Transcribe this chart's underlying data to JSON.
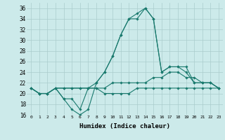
{
  "xlabel": "Humidex (Indice chaleur)",
  "bg_color": "#cceaea",
  "grid_color": "#aacccc",
  "line_color": "#1a7a6e",
  "xlim": [
    -0.5,
    23.5
  ],
  "ylim": [
    16,
    37
  ],
  "xticks": [
    0,
    1,
    2,
    3,
    4,
    5,
    6,
    7,
    8,
    9,
    10,
    11,
    12,
    13,
    14,
    15,
    16,
    17,
    18,
    19,
    20,
    21,
    22,
    23
  ],
  "yticks": [
    16,
    18,
    20,
    22,
    24,
    26,
    28,
    30,
    32,
    34,
    36
  ],
  "series": [
    [
      21,
      20,
      20,
      21,
      19,
      17,
      16,
      17,
      22,
      24,
      27,
      31,
      34,
      34,
      36,
      34,
      24,
      25,
      25,
      25,
      22,
      22,
      22,
      21
    ],
    [
      21,
      20,
      20,
      21,
      19,
      19,
      17,
      21,
      22,
      24,
      27,
      31,
      34,
      35,
      36,
      34,
      24,
      25,
      25,
      24,
      22,
      22,
      22,
      21
    ],
    [
      21,
      20,
      20,
      21,
      21,
      21,
      21,
      21,
      21,
      21,
      22,
      22,
      22,
      22,
      22,
      23,
      23,
      24,
      24,
      23,
      23,
      22,
      22,
      21
    ],
    [
      21,
      20,
      20,
      21,
      21,
      21,
      21,
      21,
      21,
      20,
      20,
      20,
      20,
      21,
      21,
      21,
      21,
      21,
      21,
      21,
      21,
      21,
      21,
      21
    ]
  ]
}
